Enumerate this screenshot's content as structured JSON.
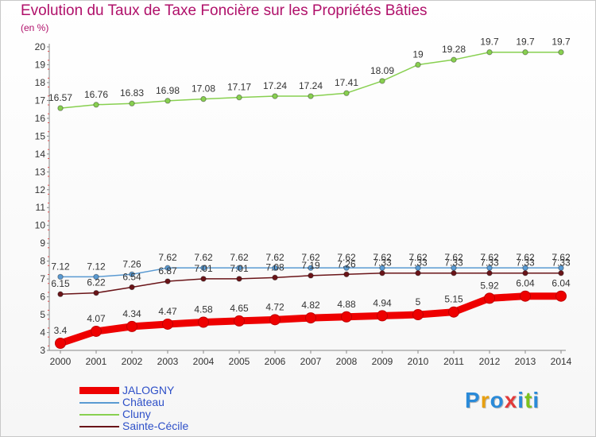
{
  "title": "Evolution du Taux de Taxe Foncière sur les Propriétés Bâties",
  "unit_label": "(en %)",
  "brand": {
    "name": "Proxiti",
    "letters": [
      "P",
      "r",
      "o",
      "x",
      "i",
      "t",
      "i"
    ],
    "colors": [
      "#2a8ad8",
      "#e8a010",
      "#2a8ad8",
      "#e23a3a",
      "#2a8ad8",
      "#7cc21e",
      "#2a8ad8"
    ]
  },
  "chart_data": {
    "type": "line",
    "title": "Evolution du Taux de Taxe Foncière sur les Propriétés Bâties",
    "ylabel": "(en %)",
    "xlabel": "",
    "ylim": [
      3,
      20
    ],
    "yticks": [
      "3",
      "4",
      "5",
      "6",
      "7",
      "8",
      "9",
      "10",
      "11",
      "12",
      "13",
      "14",
      "15",
      "16",
      "17",
      "18",
      "19",
      "20"
    ],
    "x": [
      "2000",
      "2001",
      "2002",
      "2003",
      "2004",
      "2005",
      "2006",
      "2007",
      "2008",
      "2009",
      "2010",
      "2011",
      "2012",
      "2013",
      "2014"
    ],
    "series": [
      {
        "name": "JALOGNY",
        "color": "#ee0000",
        "values": [
          3.4,
          4.07,
          4.34,
          4.47,
          4.58,
          4.65,
          4.72,
          4.82,
          4.88,
          4.94,
          5,
          5.15,
          5.92,
          6.04,
          6.04
        ],
        "labels": [
          "3.4",
          "4.07",
          "4.34",
          "4.47",
          "4.58",
          "4.65",
          "4.72",
          "4.82",
          "4.88",
          "4.94",
          "5",
          "5.15",
          "5.92",
          "6.04",
          "6.04"
        ]
      },
      {
        "name": "Château",
        "color": "#5a9ad2",
        "values": [
          7.12,
          7.12,
          7.26,
          7.62,
          7.62,
          7.62,
          7.62,
          7.62,
          7.62,
          7.62,
          7.62,
          7.62,
          7.62,
          7.62,
          7.62
        ],
        "labels": [
          "7.12",
          "7.12",
          "7.26",
          "7.62",
          "7.62",
          "7.62",
          "7.62",
          "7.62",
          "7.62",
          "7.62",
          "7.62",
          "7.62",
          "7.62",
          "7.62",
          "7.62"
        ]
      },
      {
        "name": "Cluny",
        "color": "#88d050",
        "values": [
          16.57,
          16.76,
          16.83,
          16.98,
          17.08,
          17.17,
          17.24,
          17.24,
          17.41,
          18.09,
          19,
          19.28,
          19.7,
          19.7,
          19.7
        ],
        "labels": [
          "16.57",
          "16.76",
          "16.83",
          "16.98",
          "17.08",
          "17.17",
          "17.24",
          "17.24",
          "17.41",
          "18.09",
          "19",
          "19.28",
          "19.7",
          "19.7",
          "19.7"
        ]
      },
      {
        "name": "Sainte-Cécile",
        "color": "#6a1418",
        "values": [
          6.15,
          6.22,
          6.54,
          6.87,
          7.01,
          7.01,
          7.08,
          7.19,
          7.26,
          7.33,
          7.33,
          7.33,
          7.33,
          7.33,
          7.33
        ],
        "labels": [
          "6.15",
          "6.22",
          "6.54",
          "6.87",
          "7.01",
          "7.01",
          "7.08",
          "7.19",
          "7.26",
          "7.33",
          "7.33",
          "7.33",
          "7.33",
          "7.33",
          "7.33"
        ]
      }
    ],
    "legend": [
      "JALOGNY",
      "Château",
      "Cluny",
      "Sainte-Cécile"
    ],
    "legend_position": "bottom-left",
    "grid": false
  }
}
